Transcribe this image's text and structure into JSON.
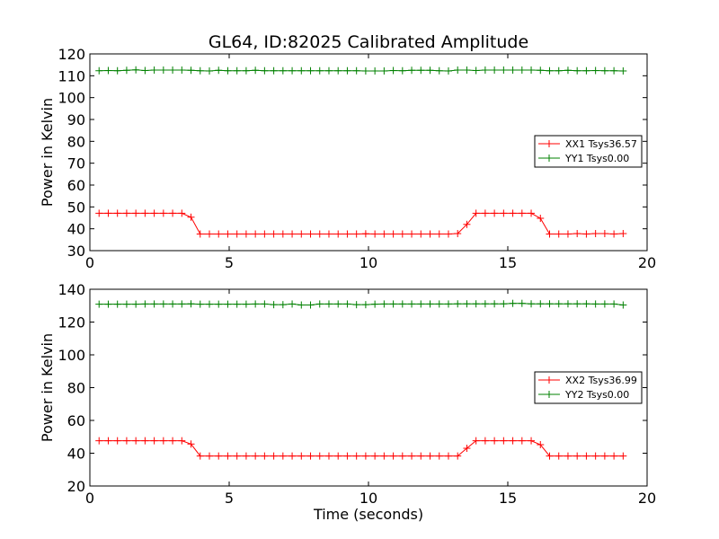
{
  "figure": {
    "title": "GL64, ID:82025 Calibrated Amplitude",
    "xlabel": "Time (seconds)"
  },
  "chart_data": [
    {
      "type": "line",
      "title": "GL64, ID:82025 Calibrated Amplitude",
      "xlabel": "",
      "ylabel": "Power in Kelvin",
      "xlim": [
        0,
        20
      ],
      "ylim": [
        30,
        120
      ],
      "xticks": [
        0,
        5,
        10,
        15,
        20
      ],
      "yticks": [
        30,
        40,
        50,
        60,
        70,
        80,
        90,
        100,
        110,
        120
      ],
      "grid": false,
      "legend_position": "right",
      "x": [
        0.33,
        0.66,
        0.99,
        1.32,
        1.65,
        1.98,
        2.31,
        2.64,
        2.97,
        3.3,
        3.63,
        3.96,
        4.29,
        4.62,
        4.95,
        5.28,
        5.61,
        5.94,
        6.27,
        6.6,
        6.93,
        7.26,
        7.59,
        7.92,
        8.25,
        8.58,
        8.91,
        9.24,
        9.57,
        9.9,
        10.23,
        10.56,
        10.89,
        11.22,
        11.55,
        11.88,
        12.21,
        12.54,
        12.87,
        13.2,
        13.53,
        13.86,
        14.19,
        14.52,
        14.85,
        15.18,
        15.51,
        15.84,
        16.17,
        16.5,
        16.83,
        17.16,
        17.49,
        17.82,
        18.15,
        18.48,
        18.81,
        19.14
      ],
      "series": [
        {
          "name": "XX1 Tsys36.57",
          "color": "#ff0000",
          "values": [
            47.1,
            47.1,
            47.1,
            47.1,
            47.1,
            47.1,
            47.1,
            47.1,
            47.1,
            47.1,
            45.3,
            37.6,
            37.6,
            37.6,
            37.6,
            37.6,
            37.6,
            37.6,
            37.6,
            37.6,
            37.6,
            37.6,
            37.6,
            37.6,
            37.6,
            37.6,
            37.6,
            37.6,
            37.6,
            37.7,
            37.6,
            37.6,
            37.6,
            37.6,
            37.6,
            37.6,
            37.6,
            37.6,
            37.6,
            37.8,
            42.0,
            47.1,
            47.1,
            47.1,
            47.1,
            47.1,
            47.1,
            47.1,
            44.8,
            37.6,
            37.6,
            37.6,
            37.8,
            37.6,
            37.8,
            37.8,
            37.6,
            37.8
          ]
        },
        {
          "name": "YY1 Tsys0.00",
          "color": "#008000",
          "values": [
            112.3,
            112.4,
            112.3,
            112.5,
            112.7,
            112.4,
            112.6,
            112.6,
            112.6,
            112.6,
            112.5,
            112.3,
            112.2,
            112.5,
            112.3,
            112.3,
            112.3,
            112.5,
            112.3,
            112.3,
            112.3,
            112.3,
            112.3,
            112.3,
            112.3,
            112.3,
            112.3,
            112.3,
            112.3,
            112.2,
            112.2,
            112.2,
            112.4,
            112.3,
            112.5,
            112.5,
            112.5,
            112.3,
            112.2,
            112.6,
            112.6,
            112.4,
            112.6,
            112.6,
            112.6,
            112.6,
            112.6,
            112.6,
            112.5,
            112.3,
            112.3,
            112.5,
            112.3,
            112.3,
            112.4,
            112.3,
            112.3,
            112.2
          ]
        }
      ]
    },
    {
      "type": "line",
      "title": "",
      "xlabel": "Time (seconds)",
      "ylabel": "Power in Kelvin",
      "xlim": [
        0,
        20
      ],
      "ylim": [
        20,
        140
      ],
      "xticks": [
        0,
        5,
        10,
        15,
        20
      ],
      "yticks": [
        20,
        40,
        60,
        80,
        100,
        120,
        140
      ],
      "grid": false,
      "legend_position": "right",
      "x": [
        0.33,
        0.66,
        0.99,
        1.32,
        1.65,
        1.98,
        2.31,
        2.64,
        2.97,
        3.3,
        3.63,
        3.96,
        4.29,
        4.62,
        4.95,
        5.28,
        5.61,
        5.94,
        6.27,
        6.6,
        6.93,
        7.26,
        7.59,
        7.92,
        8.25,
        8.58,
        8.91,
        9.24,
        9.57,
        9.9,
        10.23,
        10.56,
        10.89,
        11.22,
        11.55,
        11.88,
        12.21,
        12.54,
        12.87,
        13.2,
        13.53,
        13.86,
        14.19,
        14.52,
        14.85,
        15.18,
        15.51,
        15.84,
        16.17,
        16.5,
        16.83,
        17.16,
        17.49,
        17.82,
        18.15,
        18.48,
        18.81,
        19.14
      ],
      "series": [
        {
          "name": "XX2 Tsys36.99",
          "color": "#ff0000",
          "values": [
            47.6,
            47.6,
            47.6,
            47.6,
            47.6,
            47.6,
            47.6,
            47.6,
            47.6,
            47.6,
            45.6,
            38.3,
            38.3,
            38.3,
            38.3,
            38.3,
            38.3,
            38.3,
            38.3,
            38.3,
            38.3,
            38.3,
            38.3,
            38.3,
            38.3,
            38.3,
            38.3,
            38.3,
            38.3,
            38.3,
            38.3,
            38.3,
            38.3,
            38.3,
            38.3,
            38.3,
            38.3,
            38.3,
            38.3,
            38.3,
            43.0,
            47.6,
            47.6,
            47.6,
            47.6,
            47.6,
            47.6,
            47.6,
            45.2,
            38.3,
            38.3,
            38.3,
            38.3,
            38.3,
            38.3,
            38.3,
            38.3,
            38.3
          ]
        },
        {
          "name": "YY2 Tsys0.00",
          "color": "#008000",
          "values": [
            130.9,
            130.9,
            130.9,
            130.9,
            130.9,
            131.0,
            131.0,
            131.0,
            131.0,
            131.0,
            131.1,
            130.9,
            130.9,
            130.9,
            130.9,
            130.9,
            130.9,
            131.0,
            131.0,
            130.6,
            130.6,
            131.0,
            130.4,
            130.4,
            131.0,
            131.0,
            131.0,
            131.0,
            130.6,
            130.6,
            130.9,
            131.0,
            131.0,
            131.0,
            131.0,
            131.0,
            131.0,
            131.0,
            131.0,
            131.1,
            131.1,
            131.1,
            131.1,
            131.1,
            131.1,
            131.4,
            131.4,
            131.1,
            131.1,
            131.1,
            131.1,
            131.1,
            131.1,
            131.1,
            131.0,
            131.0,
            131.0,
            130.4
          ]
        }
      ]
    }
  ]
}
